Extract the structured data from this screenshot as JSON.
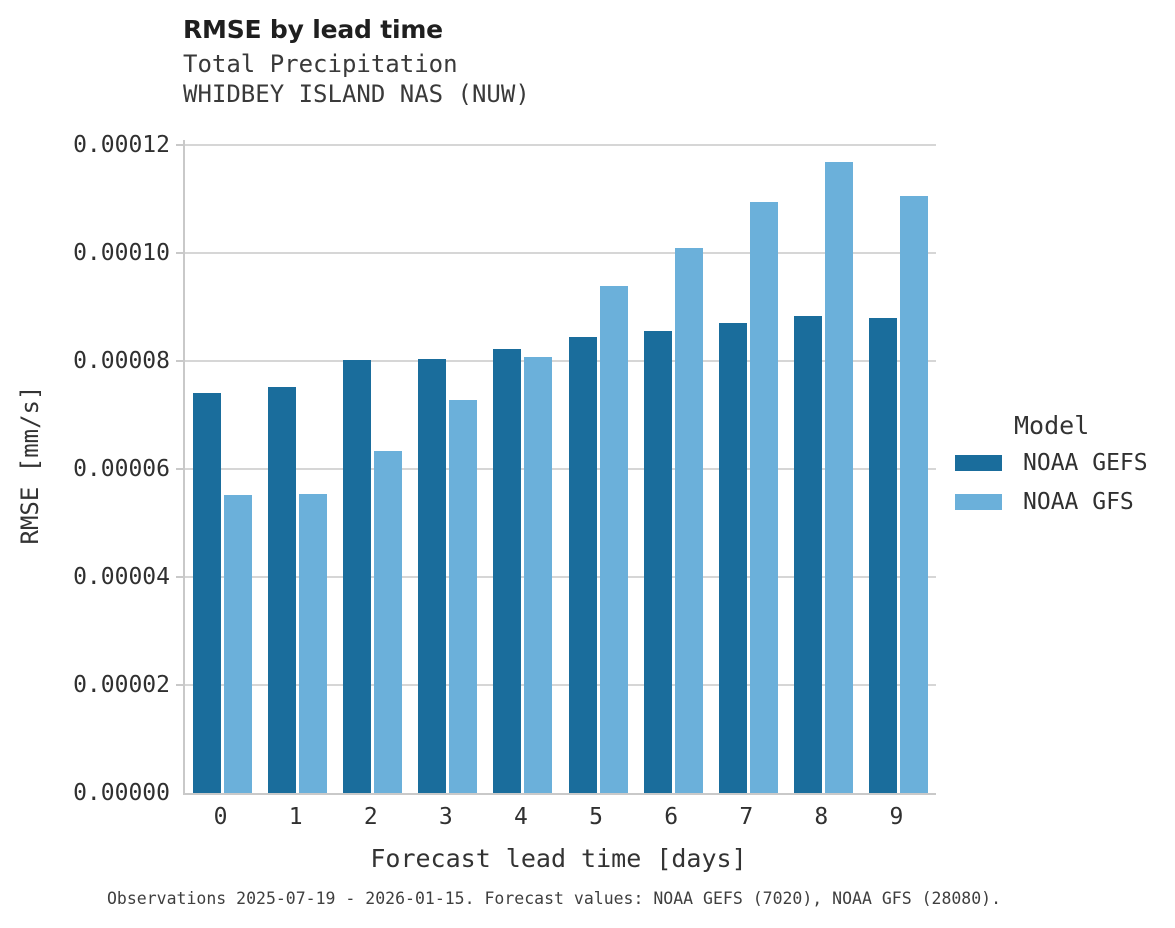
{
  "header": {
    "title": "RMSE by lead time",
    "subtitle_line1": "Total Precipitation",
    "subtitle_line2": "WHIDBEY ISLAND NAS (NUW)"
  },
  "footer": {
    "note": "Observations 2025-07-19 - 2026-01-15. Forecast values: NOAA GEFS (7020), NOAA GFS (28080)."
  },
  "legend": {
    "title": "Model",
    "items": [
      {
        "label": "NOAA GEFS",
        "color": "#1a6d9c"
      },
      {
        "label": "NOAA GFS",
        "color": "#6bb0da"
      }
    ]
  },
  "colors": {
    "gefs_bar": "#1a6d9c",
    "gfs_bar": "#6bb0da",
    "gridline": "#d6d6d6",
    "axis_spine": "#c9c9c9"
  },
  "chart_data": {
    "type": "bar",
    "title": "RMSE by lead time",
    "subtitle": [
      "Total Precipitation",
      "WHIDBEY ISLAND NAS (NUW)"
    ],
    "xlabel": "Forecast lead time [days]",
    "ylabel": "RMSE [mm/s]",
    "categories": [
      "0",
      "1",
      "2",
      "3",
      "4",
      "5",
      "6",
      "7",
      "8",
      "9"
    ],
    "series": [
      {
        "name": "NOAA GEFS",
        "color": "#1a6d9c",
        "values": [
          7.4e-05,
          7.51e-05,
          8.01e-05,
          8.04e-05,
          8.22e-05,
          8.44e-05,
          8.56e-05,
          8.7e-05,
          8.83e-05,
          8.79e-05
        ]
      },
      {
        "name": "NOAA GFS",
        "color": "#6bb0da",
        "values": [
          5.52e-05,
          5.53e-05,
          6.33e-05,
          7.27e-05,
          8.07e-05,
          9.38e-05,
          0.0001009,
          0.0001095,
          0.0001168,
          0.0001106
        ]
      }
    ],
    "ylim": [
      0,
      0.00012
    ],
    "yticks": [
      0,
      2e-05,
      4e-05,
      6e-05,
      8e-05,
      0.0001,
      0.00012
    ],
    "ytick_labels": [
      "0.00000",
      "0.00002",
      "0.00004",
      "0.00006",
      "0.00008",
      "0.00010",
      "0.00012"
    ],
    "grid": "horizontal",
    "legend_position": "right",
    "legend_title": "Model"
  }
}
